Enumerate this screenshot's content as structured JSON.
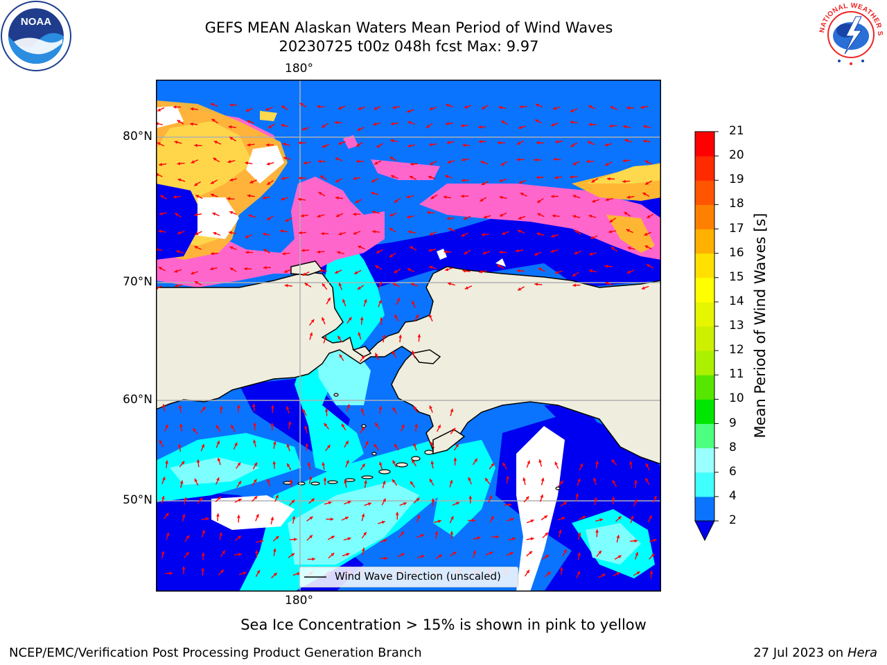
{
  "header": {
    "title_line1": "GEFS MEAN Alaskan Waters Mean Period of Wind Waves",
    "title_line2": "20230725 t00z 048h fcst   Max: 9.97"
  },
  "logos": {
    "left": {
      "name": "noaa-logo",
      "text": "NOAA"
    },
    "right": {
      "name": "nws-logo",
      "text": "NATIONAL WEATHER SERVICE"
    }
  },
  "map": {
    "lon_label_top": "180°",
    "lon_label_bottom": "180°",
    "lat_labels": [
      "80°N",
      "70°N",
      "60°N",
      "50°N"
    ],
    "legend_label": "Wind Wave Direction (unscaled)",
    "colors": {
      "land": "#efedde",
      "ocean_2_4": "#0a74ff",
      "ocean_below_2": "#0000f0",
      "ocean_4_6": "#00ffff",
      "ocean_6_8": "#7dffff",
      "ice_pink": "#ff66cc",
      "ice_orange": "#ffb733",
      "ice_yellow": "#ffd94d",
      "arrow": "#ff0000",
      "grid": "#b0b0b0"
    }
  },
  "colorbar": {
    "label": "Mean Period of Wind Waves [s]",
    "ticks": [
      "2",
      "4",
      "6",
      "8",
      "9",
      "10",
      "11",
      "12",
      "13",
      "14",
      "15",
      "16",
      "17",
      "18",
      "19",
      "20",
      "21"
    ],
    "colors": [
      "#0a74ff",
      "#00ffff",
      "#3fffff",
      "#9affff",
      "#4dff80",
      "#00e600",
      "#57e600",
      "#aaf000",
      "#cdf000",
      "#e6f500",
      "#ffff00",
      "#ffe000",
      "#ffb000",
      "#ff8000",
      "#ff5500",
      "#ff2a00",
      "#ff0000"
    ],
    "extend_below_color": "#0000f0"
  },
  "footer": {
    "note": "Sea Ice Concentration > 15% is shown in pink to yellow",
    "credit": "NCEP/EMC/Verification Post Processing Product Generation Branch",
    "date": "27 Jul 2023 on",
    "machine": "Hera"
  }
}
